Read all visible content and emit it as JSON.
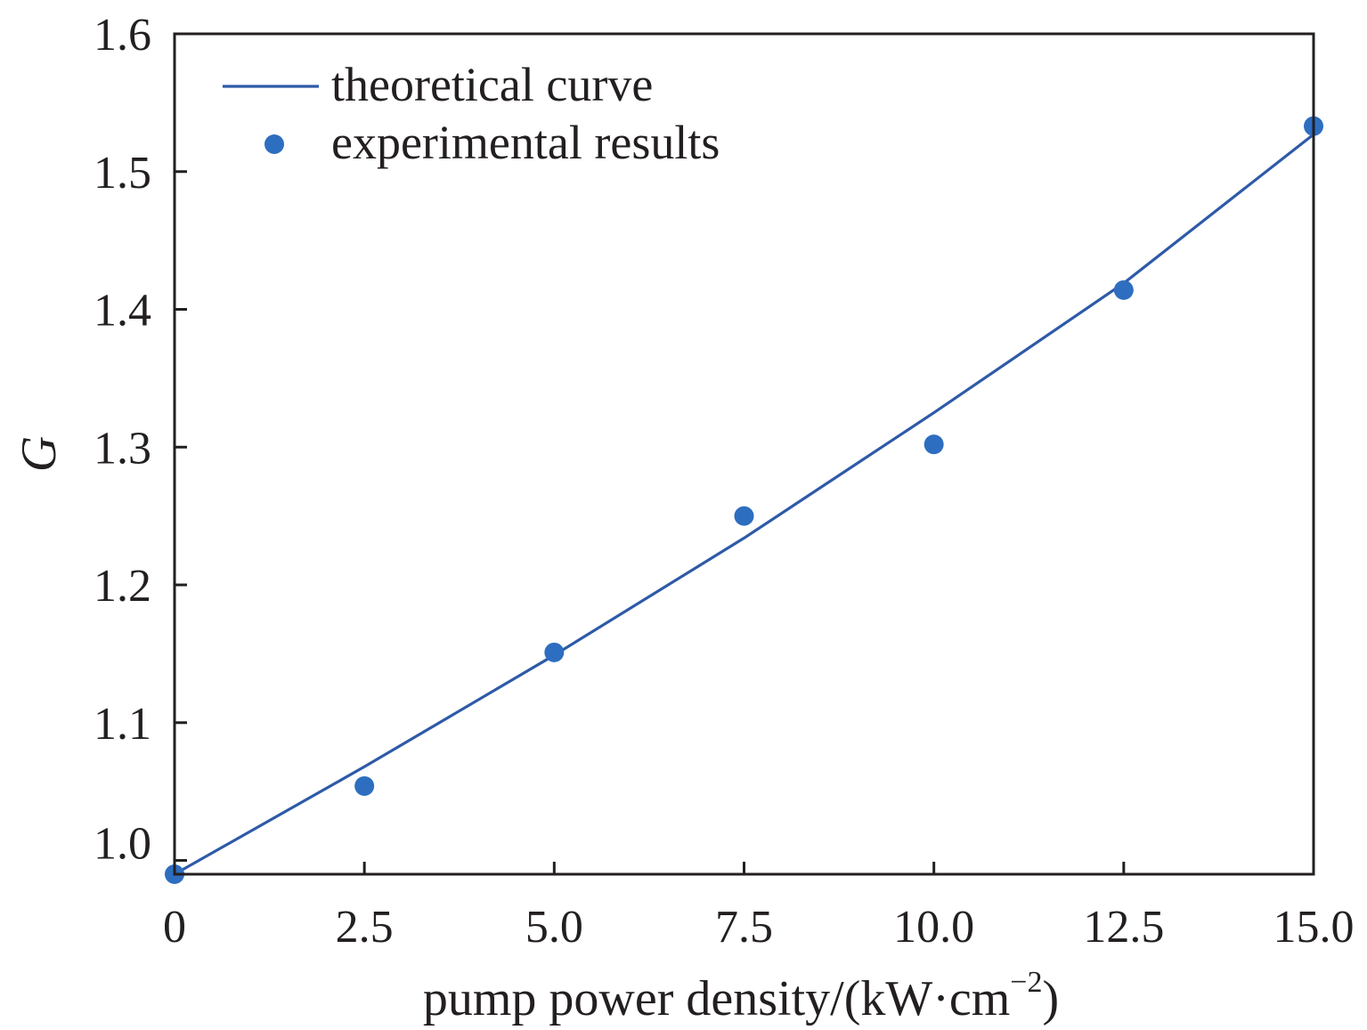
{
  "chart_data": {
    "type": "line",
    "xlabel_main": "pump power density/(kW·cm",
    "xlabel_sup": "−2",
    "xlabel_close": ")",
    "ylabel": "G",
    "xlim": [
      0,
      15
    ],
    "ylim": [
      0.99,
      1.6
    ],
    "x_ticks": [
      0,
      2.5,
      5,
      7.5,
      10,
      12.5,
      15
    ],
    "x_tick_labels": [
      "0",
      "2.5",
      "5.0",
      "7.5",
      "10.0",
      "12.5",
      "15.0"
    ],
    "y_ticks": [
      1.0,
      1.1,
      1.2,
      1.3,
      1.4,
      1.5,
      1.6
    ],
    "y_tick_labels": [
      "1.0",
      "1.1",
      "1.2",
      "1.3",
      "1.4",
      "1.5",
      "1.6"
    ],
    "grid": false,
    "legend_position": "top-left",
    "series": [
      {
        "name": "theoretical curve",
        "kind": "line",
        "color": "#2e5aa8",
        "x": [
          0,
          2.5,
          5,
          7.5,
          10,
          12.5,
          15
        ],
        "y": [
          0.99,
          1.068,
          1.149,
          1.234,
          1.325,
          1.419,
          1.527
        ]
      },
      {
        "name": "experimental results",
        "kind": "scatter",
        "color": "#2e6ec0",
        "x": [
          0,
          2.5,
          5,
          7.5,
          10,
          12.5,
          15
        ],
        "y": [
          0.99,
          1.054,
          1.151,
          1.25,
          1.302,
          1.414,
          1.533
        ]
      }
    ]
  }
}
